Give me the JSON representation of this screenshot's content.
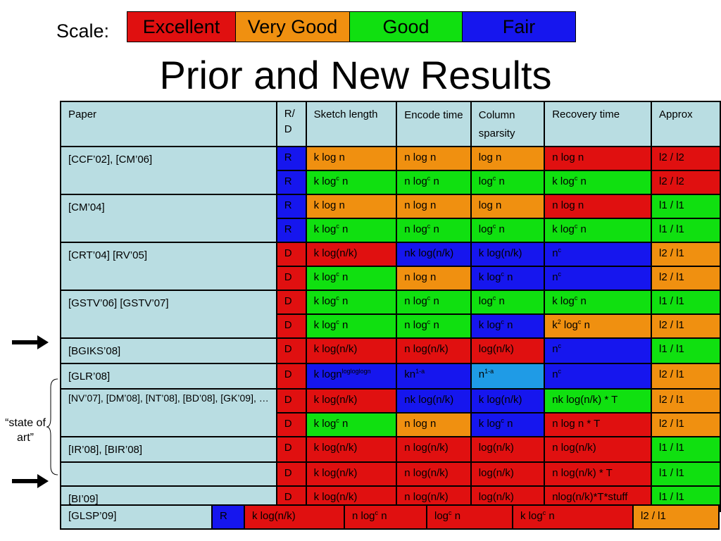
{
  "scale": {
    "label": "Scale:",
    "items": [
      {
        "label": "Excellent",
        "color": "#e01010"
      },
      {
        "label": "Very Good",
        "color": "#f09010"
      },
      {
        "label": "Good",
        "color": "#10e010"
      },
      {
        "label": "Fair",
        "color": "#1616ee"
      }
    ]
  },
  "title": "Prior and New Results",
  "colors": {
    "excellent": "#e01010",
    "very_good": "#f09010",
    "good": "#10e010",
    "fair": "#1616ee",
    "light_blue": "#1f9be6",
    "header_bg": "#b9dde2"
  },
  "table": {
    "headers": [
      "Paper",
      "R/ D",
      "Sketch length",
      "Encode time",
      "Column sparsity",
      "Recovery time",
      "Approx"
    ],
    "groups": [
      {
        "paper": "[CCF’02], [CM’06]",
        "rows": [
          {
            "rd": "R",
            "rd_color": "fair",
            "cells": [
              {
                "text": "k log n",
                "color": "very_good"
              },
              {
                "text": "n log n",
                "color": "very_good"
              },
              {
                "text": "log n",
                "color": "very_good"
              },
              {
                "text": "n log n",
                "color": "excellent"
              },
              {
                "text": "l2 / l2",
                "color": "excellent"
              }
            ]
          },
          {
            "rd": "R",
            "rd_color": "fair",
            "cells": [
              {
                "text": "k log",
                "sup": "c",
                "post": " n",
                "color": "good"
              },
              {
                "text": "n log",
                "sup": "c",
                "post": " n",
                "color": "good"
              },
              {
                "text": "log",
                "sup": "c",
                "post": " n",
                "color": "good"
              },
              {
                "text": "k log",
                "sup": "c",
                "post": " n",
                "color": "good"
              },
              {
                "text": "l2 / l2",
                "color": "excellent"
              }
            ]
          }
        ]
      },
      {
        "paper": "[CM’04]",
        "rows": [
          {
            "rd": "R",
            "rd_color": "fair",
            "cells": [
              {
                "text": "k log n",
                "color": "very_good"
              },
              {
                "text": "n log n",
                "color": "very_good"
              },
              {
                "text": "log n",
                "color": "very_good"
              },
              {
                "text": "n log n",
                "color": "excellent"
              },
              {
                "text": "l1 / l1",
                "color": "good"
              }
            ]
          },
          {
            "rd": "R",
            "rd_color": "fair",
            "cells": [
              {
                "text": "k log",
                "sup": "c",
                "post": " n",
                "color": "good"
              },
              {
                "text": "n log",
                "sup": "c",
                "post": " n",
                "color": "good"
              },
              {
                "text": "log",
                "sup": "c",
                "post": " n",
                "color": "good"
              },
              {
                "text": "k log",
                "sup": "c",
                "post": " n",
                "color": "good"
              },
              {
                "text": "l1 / l1",
                "color": "good"
              }
            ]
          }
        ]
      },
      {
        "paper": "[CRT’04] [RV’05]",
        "rows": [
          {
            "rd": "D",
            "rd_color": "excellent",
            "cells": [
              {
                "text": "k log(n/k)",
                "color": "excellent"
              },
              {
                "text": "nk log(n/k)",
                "color": "fair"
              },
              {
                "text": "k log(n/k)",
                "color": "fair"
              },
              {
                "text": "n",
                "sup": "c",
                "post": "",
                "color": "fair"
              },
              {
                "text": "l2 / l1",
                "color": "very_good"
              }
            ]
          },
          {
            "rd": "D",
            "rd_color": "excellent",
            "cells": [
              {
                "text": "k log",
                "sup": "c",
                "post": " n",
                "color": "good"
              },
              {
                "text": "n log n",
                "color": "very_good"
              },
              {
                "text": "k log",
                "sup": "c",
                "post": " n",
                "color": "fair"
              },
              {
                "text": "n",
                "sup": "c",
                "post": "",
                "color": "fair"
              },
              {
                "text": "l2 / l1",
                "color": "very_good"
              }
            ]
          }
        ]
      },
      {
        "paper": "[GSTV’06] [GSTV’07]",
        "rows": [
          {
            "rd": "D",
            "rd_color": "excellent",
            "cells": [
              {
                "text": "k log",
                "sup": "c",
                "post": " n",
                "color": "good"
              },
              {
                "text": "n log",
                "sup": "c",
                "post": " n",
                "color": "good"
              },
              {
                "text": "log",
                "sup": "c",
                "post": " n",
                "color": "good"
              },
              {
                "text": "k log",
                "sup": "c",
                "post": " n",
                "color": "good"
              },
              {
                "text": "l1 / l1",
                "color": "good"
              }
            ]
          },
          {
            "rd": "D",
            "rd_color": "excellent",
            "cells": [
              {
                "text": "k log",
                "sup": "c",
                "post": " n",
                "color": "good"
              },
              {
                "text": "n log",
                "sup": "c",
                "post": " n",
                "color": "good"
              },
              {
                "text": "k log",
                "sup": "c",
                "post": " n",
                "color": "fair"
              },
              {
                "text": "k",
                "sup": "2",
                "post": " log",
                "sup2": "c",
                "post2": " n",
                "color": "very_good"
              },
              {
                "text": "l2 / l1",
                "color": "very_good"
              }
            ]
          }
        ]
      },
      {
        "paper": "[BGIKS’08]",
        "rows": [
          {
            "rd": "D",
            "rd_color": "excellent",
            "cells": [
              {
                "text": "k log(n/k)",
                "color": "excellent"
              },
              {
                "text": "n log(n/k)",
                "color": "excellent"
              },
              {
                "text": "log(n/k)",
                "color": "excellent"
              },
              {
                "text": "n",
                "sup": "c",
                "post": "",
                "color": "fair"
              },
              {
                "text": "l1 / l1",
                "color": "good"
              }
            ]
          }
        ]
      },
      {
        "paper": "[GLR’08]",
        "rows": [
          {
            "rd": "D",
            "rd_color": "excellent",
            "cells": [
              {
                "text": "k logn",
                "sup": "logloglogn",
                "post": "",
                "color": "fair"
              },
              {
                "text": "kn",
                "sup": "1-a",
                "post": "",
                "color": "fair"
              },
              {
                "text": "n",
                "sup": "1-a",
                "post": "",
                "color": "light_blue"
              },
              {
                "text": "n",
                "sup": "c",
                "post": "",
                "color": "fair"
              },
              {
                "text": "l2 / l1",
                "color": "very_good"
              }
            ]
          }
        ]
      },
      {
        "paper": "[NV’07], [DM’08], [NT’08], [BD’08], [GK’09], …",
        "small": true,
        "rows": [
          {
            "rd": "D",
            "rd_color": "excellent",
            "cells": [
              {
                "text": "k log(n/k)",
                "color": "excellent"
              },
              {
                "text": "nk log(n/k)",
                "color": "fair"
              },
              {
                "text": "k log(n/k)",
                "color": "fair"
              },
              {
                "text": "nk log(n/k) * T",
                "color": "good"
              },
              {
                "text": "l2 / l1",
                "color": "very_good"
              }
            ]
          },
          {
            "rd": "D",
            "rd_color": "excellent",
            "cells": [
              {
                "text": "k log",
                "sup": "c",
                "post": " n",
                "color": "good"
              },
              {
                "text": "n log n",
                "color": "very_good"
              },
              {
                "text": "k log",
                "sup": "c",
                "post": " n",
                "color": "fair"
              },
              {
                "text": "n log n * T",
                "color": "excellent"
              },
              {
                "text": "l2 / l1",
                "color": "very_good"
              }
            ]
          }
        ]
      },
      {
        "paper": "[IR’08], [BIR’08]",
        "rows": [
          {
            "rd": "D",
            "rd_color": "excellent",
            "cells": [
              {
                "text": "k log(n/k)",
                "color": "excellent"
              },
              {
                "text": "n log(n/k)",
                "color": "excellent"
              },
              {
                "text": "log(n/k)",
                "color": "excellent"
              },
              {
                "text": "n log(n/k)",
                "color": "excellent"
              },
              {
                "text": "l1 / l1",
                "color": "good"
              }
            ]
          }
        ]
      },
      {
        "paper": "",
        "rows": [
          {
            "rd": "D",
            "rd_color": "excellent",
            "cells": [
              {
                "text": "k log(n/k)",
                "color": "excellent"
              },
              {
                "text": "n log(n/k)",
                "color": "excellent"
              },
              {
                "text": "log(n/k)",
                "color": "excellent"
              },
              {
                "text": "n log(n/k)  * T",
                "color": "excellent"
              },
              {
                "text": "l1 / l1",
                "color": "good"
              }
            ]
          }
        ]
      },
      {
        "paper": "[BI’09]",
        "rows": [
          {
            "rd": "D",
            "rd_color": "excellent",
            "cells": [
              {
                "text": "k log(n/k)",
                "color": "excellent"
              },
              {
                "text": "n log(n/k)",
                "color": "excellent"
              },
              {
                "text": "log(n/k)",
                "color": "excellent"
              },
              {
                "text": "nlog(n/k)*T*stuff",
                "color": "excellent"
              },
              {
                "text": "l1 / l1",
                "color": "good"
              }
            ]
          }
        ]
      }
    ]
  },
  "glsp": {
    "paper": "[GLSP’09]",
    "rd": "R",
    "rd_color": "fair",
    "cells": [
      {
        "text": "k log(n/k)",
        "color": "excellent"
      },
      {
        "text": "n log",
        "sup": "c",
        "post": " n",
        "color": "excellent"
      },
      {
        "text": "log",
        "sup": "c",
        "post": " n",
        "color": "excellent"
      },
      {
        "text": "k log",
        "sup": "c",
        "post": " n",
        "color": "excellent"
      },
      {
        "text": "l2 / l1",
        "color": "very_good"
      }
    ]
  },
  "side_note": "“state of art”"
}
